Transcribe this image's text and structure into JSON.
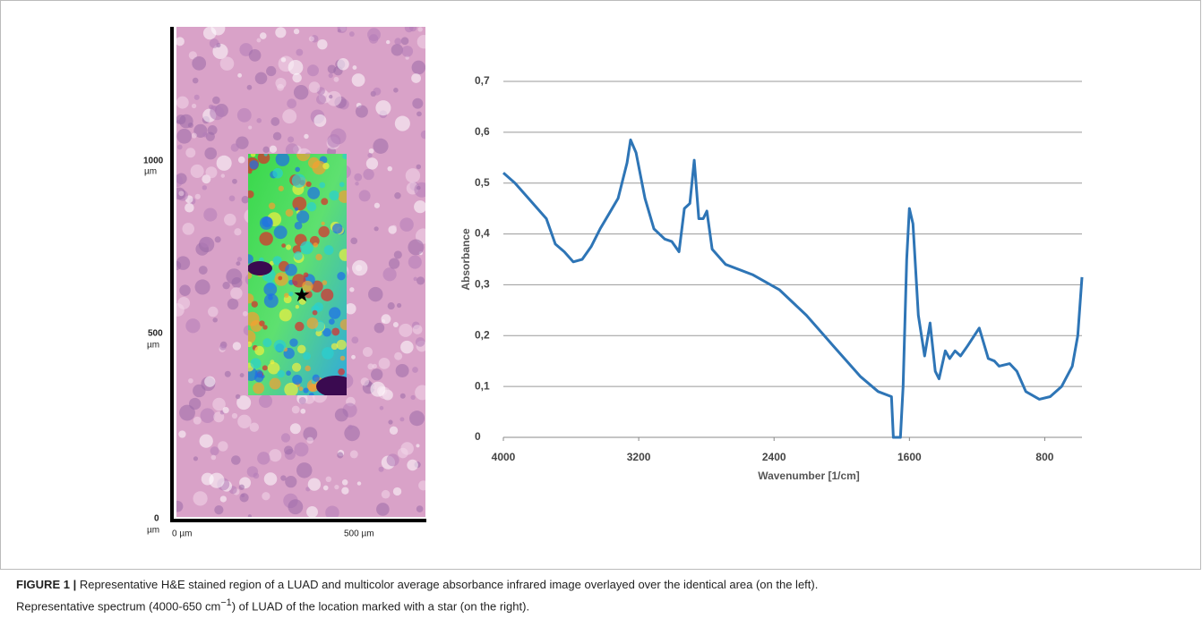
{
  "image_panel": {
    "y_labels": [
      {
        "number": "1000",
        "unit": "µm"
      },
      {
        "number": "500",
        "unit": "µm"
      },
      {
        "number": "0",
        "unit": "µm"
      }
    ],
    "x_labels": [
      "0 µm",
      "500 µm"
    ]
  },
  "chart_data": {
    "type": "line",
    "y_label": "Absorbance",
    "x_label": "Wavenumber [1/cm]",
    "color": "#2e75b6",
    "grid": true,
    "xlim": [
      4000,
      580
    ],
    "xticks": [
      4000,
      3200,
      2400,
      1600,
      800
    ],
    "ylim": [
      0,
      0.7
    ],
    "yticks": [
      0,
      {
        "value": 0.1,
        "label": "0,1"
      },
      {
        "value": 0.2,
        "label": "0,2"
      },
      {
        "value": 0.3,
        "label": "0,3"
      },
      {
        "value": 0.4,
        "label": "0,4"
      },
      {
        "value": 0.5,
        "label": "0,5"
      },
      {
        "value": 0.6,
        "label": "0,6"
      },
      {
        "value": 0.7,
        "label": "0,7"
      }
    ],
    "x": [
      4000,
      3931,
      3852,
      3799,
      3746,
      3693,
      3640,
      3587,
      3534,
      3481,
      3428,
      3375,
      3322,
      3269,
      3248,
      3216,
      3163,
      3110,
      3046,
      3004,
      2962,
      2930,
      2898,
      2872,
      2845,
      2819,
      2797,
      2766,
      2686,
      2527,
      2368,
      2209,
      2050,
      1891,
      1785,
      1706,
      1695,
      1653,
      1637,
      1616,
      1600,
      1579,
      1547,
      1510,
      1478,
      1447,
      1425,
      1388,
      1362,
      1330,
      1298,
      1256,
      1187,
      1134,
      1097,
      1070,
      1007,
      965,
      912,
      832,
      768,
      700,
      637,
      605,
      580
    ],
    "values": [
      0.52,
      0.5,
      0.47,
      0.45,
      0.43,
      0.38,
      0.365,
      0.345,
      0.35,
      0.375,
      0.41,
      0.44,
      0.47,
      0.54,
      0.585,
      0.56,
      0.47,
      0.41,
      0.39,
      0.385,
      0.365,
      0.45,
      0.46,
      0.545,
      0.43,
      0.43,
      0.445,
      0.37,
      0.34,
      0.32,
      0.29,
      0.24,
      0.18,
      0.12,
      0.09,
      0.08,
      0,
      0,
      0.1,
      0.35,
      0.45,
      0.42,
      0.24,
      0.16,
      0.225,
      0.13,
      0.115,
      0.17,
      0.155,
      0.17,
      0.16,
      0.18,
      0.215,
      0.155,
      0.15,
      0.14,
      0.145,
      0.13,
      0.09,
      0.075,
      0.08,
      0.1,
      0.14,
      0.2,
      0.315
    ]
  },
  "caption": {
    "label": "FIGURE 1 |",
    "text_1": "Representative H&E stained region of a LUAD and multicolor average absorbance infrared image overlayed over the identical area (on the left).",
    "text_2": "Representative spectrum (4000-650 cm",
    "superscript": "−1",
    "text_3": ") of LUAD of the location marked with a star (on the right)."
  }
}
